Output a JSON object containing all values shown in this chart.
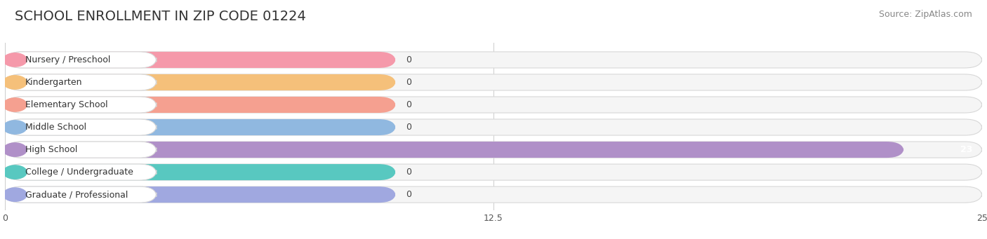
{
  "title": "SCHOOL ENROLLMENT IN ZIP CODE 01224",
  "source": "Source: ZipAtlas.com",
  "categories": [
    "Nursery / Preschool",
    "Kindergarten",
    "Elementary School",
    "Middle School",
    "High School",
    "College / Undergraduate",
    "Graduate / Professional"
  ],
  "values": [
    0,
    0,
    0,
    0,
    23,
    0,
    0
  ],
  "bar_colors": [
    "#f599aa",
    "#f5c07a",
    "#f5a090",
    "#90b8e0",
    "#b090c8",
    "#58c8c0",
    "#a0a8e0"
  ],
  "xlim": [
    0,
    25
  ],
  "xticks": [
    0,
    12.5,
    25
  ],
  "background_color": "#ffffff",
  "row_bg_color": "#efefef",
  "title_fontsize": 14,
  "source_fontsize": 9,
  "label_fontsize": 9,
  "tick_fontsize": 9,
  "value_zero_color": "#444444",
  "value_nonzero_color": "#ffffff"
}
